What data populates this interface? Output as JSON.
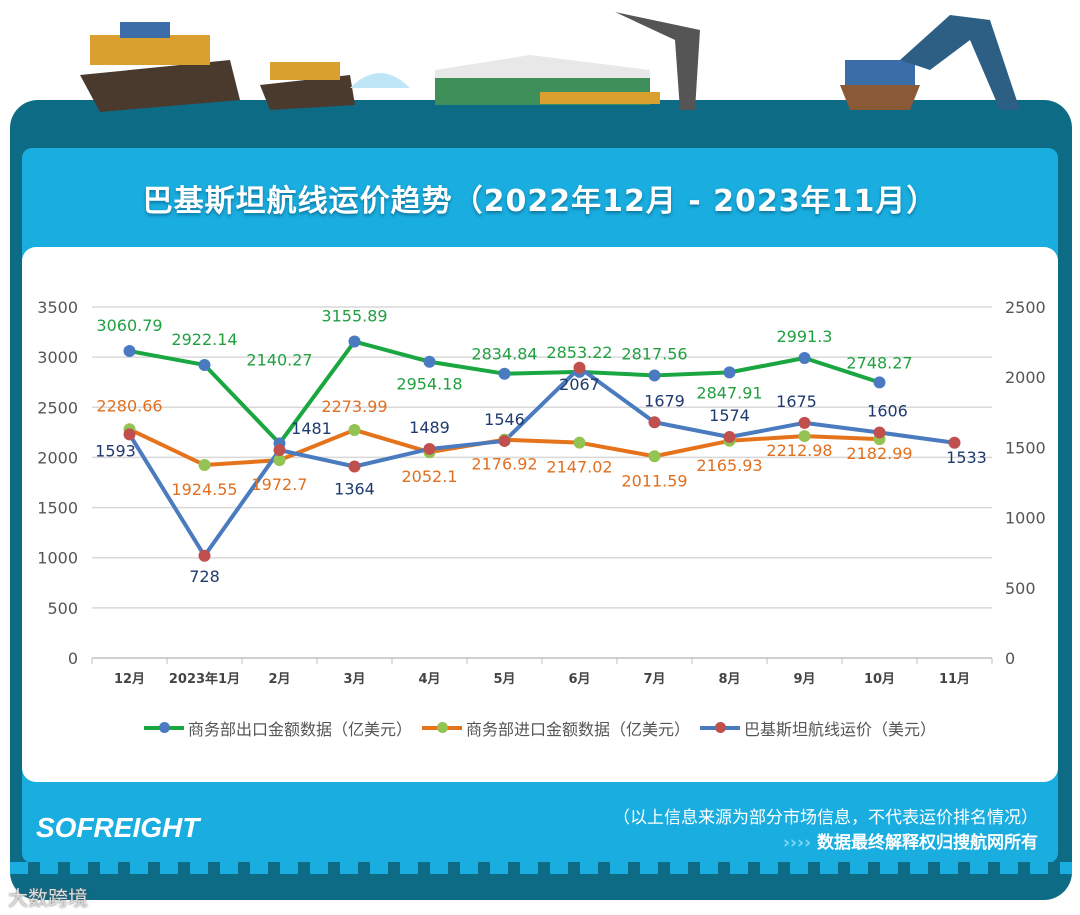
{
  "title": "巴基斯坦航线运价趋势（2022年12月 - 2023年11月）",
  "chart_data": {
    "type": "line",
    "categories": [
      "12月",
      "2023年1月",
      "2月",
      "3月",
      "4月",
      "5月",
      "6月",
      "7月",
      "8月",
      "9月",
      "10月",
      "11月"
    ],
    "y_left": {
      "range": [
        0,
        3500
      ],
      "ticks": [
        0,
        500,
        1000,
        1500,
        2000,
        2500,
        3000,
        3500
      ]
    },
    "y_right": {
      "range": [
        0,
        2500
      ],
      "ticks": [
        0,
        500,
        1000,
        1500,
        2000,
        2500
      ]
    },
    "grid": true,
    "legend_position": "bottom",
    "series": [
      {
        "name": "商务部出口金额数据（亿美元）",
        "axis": "left",
        "line_color": "#1aa640",
        "marker_color": "#4a7bc0",
        "label_color": "#22a040",
        "values": [
          3060.79,
          2922.14,
          2140.27,
          3155.89,
          2954.18,
          2834.84,
          2853.22,
          2817.56,
          2847.91,
          2991.3,
          2748.27,
          null
        ]
      },
      {
        "name": "商务部进口金额数据（亿美元）",
        "axis": "left",
        "line_color": "#e5731c",
        "marker_color": "#92c353",
        "label_color": "#e07020",
        "values": [
          2280.66,
          1924.55,
          1972.7,
          2273.99,
          2052.1,
          2176.92,
          2147.02,
          2011.59,
          2165.93,
          2212.98,
          2182.99,
          null
        ]
      },
      {
        "name": "巴基斯坦航线运价（美元）",
        "axis": "right",
        "line_color": "#4a7bbf",
        "marker_color": "#c0504d",
        "label_color": "#1f3a6e",
        "values": [
          1593,
          728,
          1481,
          1364,
          1489,
          1546,
          2067,
          1679,
          1574,
          1675,
          1606,
          1533
        ]
      }
    ]
  },
  "footer": {
    "logo": "SOFREIGHT",
    "note1": "（以上信息来源为部分市场信息，不代表运价排名情况）",
    "chevrons": "››››",
    "note2": "数据最终解释权归搜航网所有",
    "watermark": "大数跨境"
  }
}
